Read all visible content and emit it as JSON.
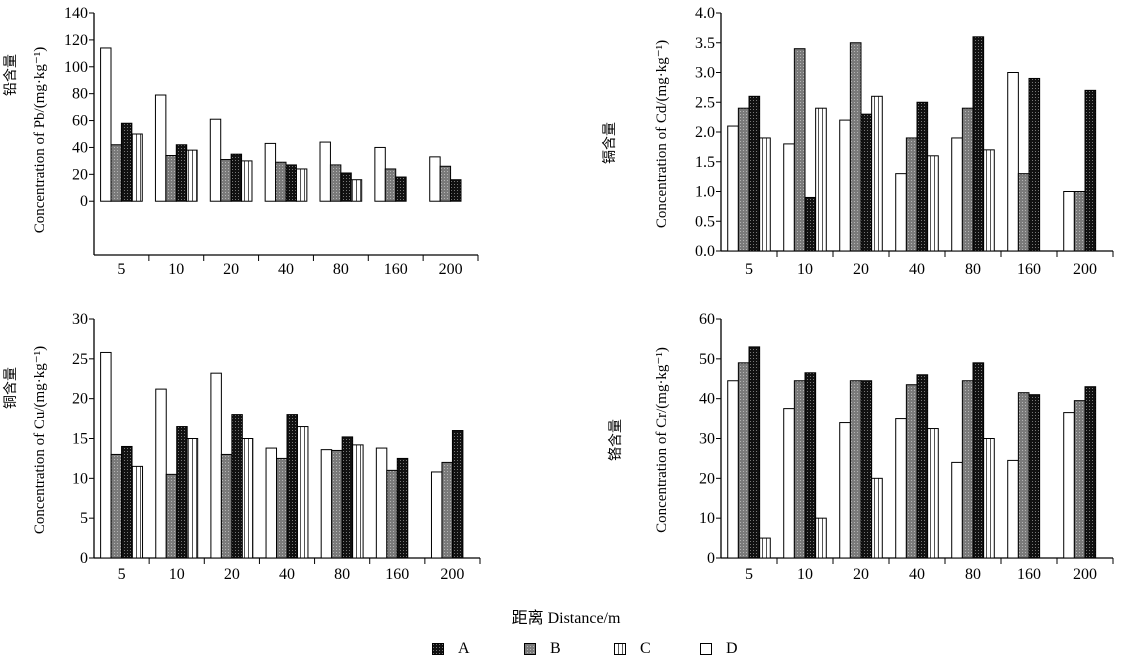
{
  "x_axis_title": "距离 Distance/m",
  "legend_labels": {
    "A": "A",
    "B": "B",
    "C": "C",
    "D": "D"
  },
  "colors": {
    "A": "#1a1a1a",
    "B": "#8a8a8a",
    "C": "#ffffff",
    "D": "#ffffff",
    "axis": "#000000"
  },
  "chart_data": [
    {
      "type": "bar",
      "element": "Pb",
      "ylabel_zh": "铅含量",
      "ylabel_en": "Concentration of Pb/(mg·kg⁻¹)",
      "categories": [
        "5",
        "10",
        "20",
        "40",
        "80",
        "160",
        "200"
      ],
      "ylim": [
        -40,
        140
      ],
      "yticks": [
        0,
        20,
        40,
        60,
        80,
        100,
        120,
        140
      ],
      "series_order": [
        "D",
        "B",
        "A",
        "C"
      ],
      "series": [
        {
          "name": "A",
          "values": [
            58,
            42,
            35,
            27,
            21,
            18,
            16
          ]
        },
        {
          "name": "B",
          "values": [
            42,
            34,
            31,
            29,
            27,
            24,
            26
          ]
        },
        {
          "name": "C",
          "values": [
            50,
            38,
            30,
            24,
            16,
            null,
            null
          ]
        },
        {
          "name": "D",
          "values": [
            114,
            79,
            61,
            43,
            44,
            40,
            33
          ]
        }
      ]
    },
    {
      "type": "bar",
      "element": "Cd",
      "ylabel_zh": "镉含量",
      "ylabel_en": "Concentration of Cd/(mg·kg⁻¹)",
      "categories": [
        "5",
        "10",
        "20",
        "40",
        "80",
        "160",
        "200"
      ],
      "ylim": [
        0,
        4
      ],
      "yticks": [
        0,
        0.5,
        1.0,
        1.5,
        2.0,
        2.5,
        3.0,
        3.5,
        4.0
      ],
      "series_order": [
        "D",
        "B",
        "A",
        "C"
      ],
      "series": [
        {
          "name": "A",
          "values": [
            2.6,
            0.9,
            2.3,
            2.5,
            3.6,
            2.9,
            2.7
          ]
        },
        {
          "name": "B",
          "values": [
            2.4,
            3.4,
            3.5,
            1.9,
            2.4,
            1.3,
            1.0
          ]
        },
        {
          "name": "C",
          "values": [
            1.9,
            2.4,
            2.6,
            1.6,
            1.7,
            null,
            null
          ]
        },
        {
          "name": "D",
          "values": [
            2.1,
            1.8,
            2.2,
            1.3,
            1.9,
            3.0,
            1.0
          ]
        }
      ]
    },
    {
      "type": "bar",
      "element": "Cu",
      "ylabel_zh": "铜含量",
      "ylabel_en": "Concentration of Cu/(mg·kg⁻¹)",
      "categories": [
        "5",
        "10",
        "20",
        "40",
        "80",
        "160",
        "200"
      ],
      "ylim": [
        0,
        30
      ],
      "yticks": [
        0,
        5,
        10,
        15,
        20,
        25,
        30
      ],
      "series_order": [
        "D",
        "B",
        "A",
        "C"
      ],
      "series": [
        {
          "name": "A",
          "values": [
            14,
            16.5,
            18,
            18,
            15.2,
            12.5,
            16
          ]
        },
        {
          "name": "B",
          "values": [
            13,
            10.5,
            13,
            12.5,
            13.5,
            11,
            12
          ]
        },
        {
          "name": "C",
          "values": [
            11.5,
            15,
            15,
            16.5,
            14.2,
            null,
            null
          ]
        },
        {
          "name": "D",
          "values": [
            25.8,
            21.2,
            23.2,
            13.8,
            13.6,
            13.8,
            10.8
          ]
        }
      ]
    },
    {
      "type": "bar",
      "element": "Cr",
      "ylabel_zh": "铬含量",
      "ylabel_en": "Concentration of Cr/(mg·kg⁻¹)",
      "categories": [
        "5",
        "10",
        "20",
        "40",
        "80",
        "160",
        "200"
      ],
      "ylim": [
        0,
        60
      ],
      "yticks": [
        0,
        10,
        20,
        30,
        40,
        50,
        60
      ],
      "series_order": [
        "D",
        "B",
        "A",
        "C"
      ],
      "series": [
        {
          "name": "A",
          "values": [
            53,
            46.5,
            44.5,
            46,
            49,
            41,
            43
          ]
        },
        {
          "name": "B",
          "values": [
            49,
            44.5,
            44.5,
            43.5,
            44.5,
            41.5,
            39.5
          ]
        },
        {
          "name": "C",
          "values": [
            5,
            10,
            20,
            32.5,
            30,
            null,
            null
          ]
        },
        {
          "name": "D",
          "values": [
            44.5,
            37.5,
            34,
            35,
            24,
            24.5,
            36.5
          ]
        }
      ]
    }
  ]
}
